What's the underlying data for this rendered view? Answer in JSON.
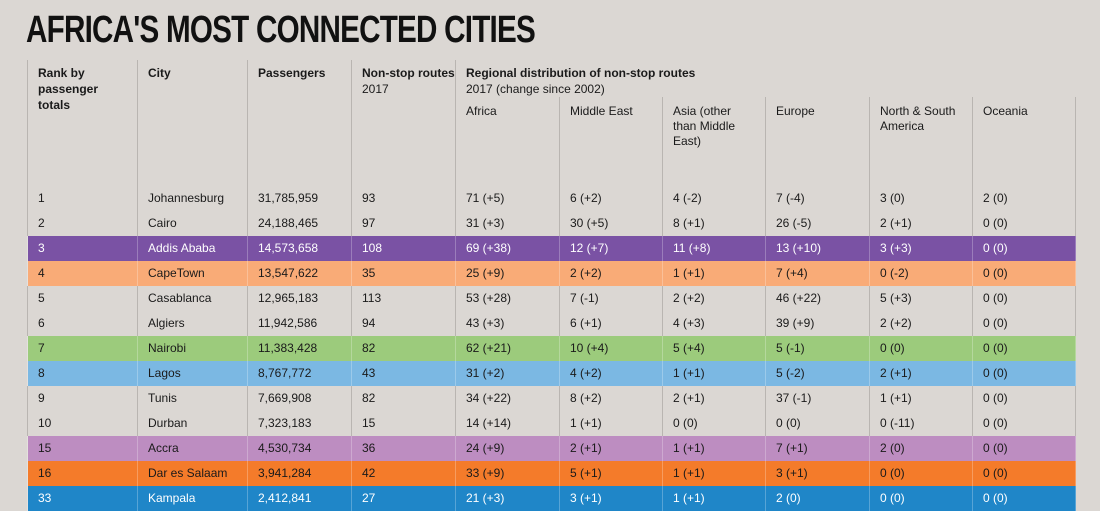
{
  "title": "AFRICA'S MOST CONNECTED CITIES",
  "chart_data": {
    "type": "table",
    "title": "AFRICA'S MOST CONNECTED CITIES",
    "columns": {
      "rank": "Rank by passenger totals",
      "city": "City",
      "passengers": "Passengers",
      "routes": "Non-stop routes",
      "routes_sub": "2017",
      "regional": "Regional distribution of non-stop routes",
      "regional_sub": "2017 (change since 2002)",
      "regions": [
        "Africa",
        "Middle East",
        "Asia (other than Middle East)",
        "Europe",
        "North & South America",
        "Oceania"
      ]
    },
    "rows": [
      {
        "rank": "1",
        "city": "Johannesburg",
        "passengers": "31,785,959",
        "routes": "93",
        "regions": [
          "71 (+5)",
          "6 (+2)",
          "4 (-2)",
          "7 (-4)",
          "3 (0)",
          "2 (0)"
        ],
        "highlight": null,
        "text_color": "#1a1a1a"
      },
      {
        "rank": "2",
        "city": "Cairo",
        "passengers": "24,188,465",
        "routes": "97",
        "regions": [
          "31 (+3)",
          "30 (+5)",
          "8 (+1)",
          "26 (-5)",
          "2 (+1)",
          "0 (0)"
        ],
        "highlight": null,
        "text_color": "#1a1a1a"
      },
      {
        "rank": "3",
        "city": "Addis Ababa",
        "passengers": "14,573,658",
        "routes": "108",
        "regions": [
          "69 (+38)",
          "12 (+7)",
          "11 (+8)",
          "13 (+10)",
          "3 (+3)",
          "0 (0)"
        ],
        "highlight": "#7a52a4",
        "text_color": "#ffffff"
      },
      {
        "rank": "4",
        "city": "CapeTown",
        "passengers": "13,547,622",
        "routes": "35",
        "regions": [
          "25 (+9)",
          "2 (+2)",
          "1 (+1)",
          "7 (+4)",
          "0 (-2)",
          "0 (0)"
        ],
        "highlight": "#f9ab77",
        "text_color": "#1a1a1a"
      },
      {
        "rank": "5",
        "city": "Casablanca",
        "passengers": "12,965,183",
        "routes": "113",
        "regions": [
          "53 (+28)",
          "7 (-1)",
          "2 (+2)",
          "46 (+22)",
          "5 (+3)",
          "0 (0)"
        ],
        "highlight": null,
        "text_color": "#1a1a1a"
      },
      {
        "rank": "6",
        "city": "Algiers",
        "passengers": "11,942,586",
        "routes": "94",
        "regions": [
          "43 (+3)",
          "6 (+1)",
          "4 (+3)",
          "39 (+9)",
          "2 (+2)",
          "0 (0)"
        ],
        "highlight": null,
        "text_color": "#1a1a1a"
      },
      {
        "rank": "7",
        "city": "Nairobi",
        "passengers": "11,383,428",
        "routes": "82",
        "regions": [
          "62 (+21)",
          "10 (+4)",
          "5 (+4)",
          "5 (-1)",
          "0 (0)",
          "0 (0)"
        ],
        "highlight": "#9ccb7c",
        "text_color": "#1a1a1a"
      },
      {
        "rank": "8",
        "city": "Lagos",
        "passengers": "8,767,772",
        "routes": "43",
        "regions": [
          "31 (+2)",
          "4 (+2)",
          "1 (+1)",
          "5 (-2)",
          "2 (+1)",
          "0 (0)"
        ],
        "highlight": "#7bb8e3",
        "text_color": "#1a1a1a"
      },
      {
        "rank": "9",
        "city": "Tunis",
        "passengers": "7,669,908",
        "routes": "82",
        "regions": [
          "34 (+22)",
          "8 (+2)",
          "2 (+1)",
          "37 (-1)",
          "1 (+1)",
          "0 (0)"
        ],
        "highlight": null,
        "text_color": "#1a1a1a"
      },
      {
        "rank": "10",
        "city": "Durban",
        "passengers": "7,323,183",
        "routes": "15",
        "regions": [
          "14 (+14)",
          "1 (+1)",
          "0 (0)",
          "0 (0)",
          "0 (-11)",
          "0 (0)"
        ],
        "highlight": null,
        "text_color": "#1a1a1a"
      },
      {
        "rank": "15",
        "city": "Accra",
        "passengers": "4,530,734",
        "routes": "36",
        "regions": [
          "24 (+9)",
          "2 (+1)",
          "1 (+1)",
          "7 (+1)",
          "2 (0)",
          "0 (0)"
        ],
        "highlight": "#bd8dc1",
        "text_color": "#1a1a1a"
      },
      {
        "rank": "16",
        "city": "Dar es Salaam",
        "passengers": "3,941,284",
        "routes": "42",
        "regions": [
          "33 (+9)",
          "5 (+1)",
          "1 (+1)",
          "3 (+1)",
          "0 (0)",
          "0 (0)"
        ],
        "highlight": "#f47b2a",
        "text_color": "#1a1a1a"
      },
      {
        "rank": "33",
        "city": "Kampala",
        "passengers": "2,412,841",
        "routes": "27",
        "regions": [
          "21 (+3)",
          "3 (+1)",
          "1 (+1)",
          "2 (0)",
          "0 (0)",
          "0 (0)"
        ],
        "highlight": "#1f86c8",
        "text_color": "#ffffff"
      }
    ]
  }
}
